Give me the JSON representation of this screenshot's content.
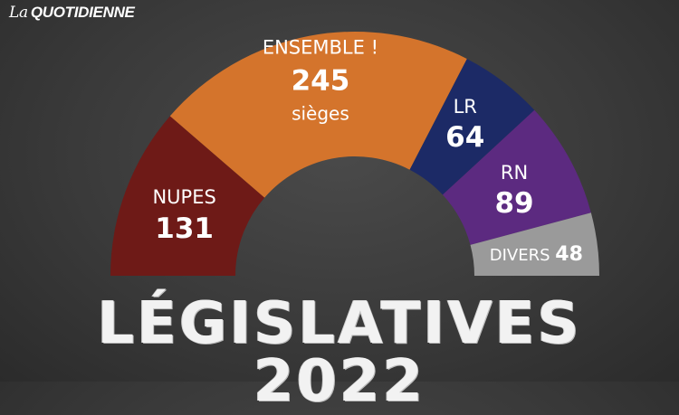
{
  "brand": {
    "prefix": "La",
    "name": "QUOTIDIENNE"
  },
  "headline": "LÉGISLATIVES 2022",
  "chart_data": {
    "type": "pie",
    "subtype": "hemicycle",
    "unit": "sièges",
    "slices": [
      {
        "label": "NUPES",
        "value": 131,
        "color": "#6e1a17"
      },
      {
        "label": "ENSEMBLE !",
        "value": 245,
        "color": "#d4742c",
        "unit_label": "sièges"
      },
      {
        "label": "LR",
        "value": 64,
        "color": "#1c2a66"
      },
      {
        "label": "RN",
        "value": 89,
        "color": "#5c2a80"
      },
      {
        "label": "DIVERS",
        "value": 48,
        "color": "#9a9a9a"
      }
    ]
  }
}
